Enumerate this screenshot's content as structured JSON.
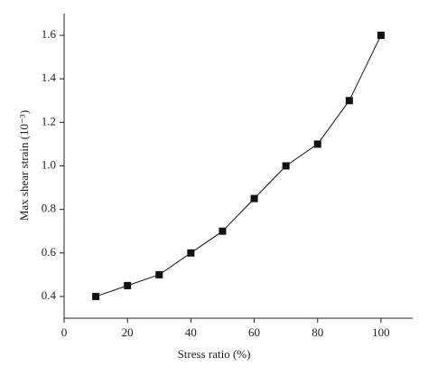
{
  "chart_data": {
    "type": "line",
    "x_label": "Stress ratio (%)",
    "y_label": "Max shear strain (10⁻³)",
    "x": [
      10,
      20,
      30,
      40,
      50,
      60,
      70,
      80,
      90,
      100
    ],
    "series": [
      {
        "color": "#111111",
        "values": [
          0.4,
          0.45,
          0.5,
          0.6,
          0.7,
          0.85,
          1.0,
          1.1,
          1.3,
          1.6
        ]
      }
    ],
    "xlim": [
      0,
      110
    ],
    "xticks": [
      0,
      20,
      40,
      60,
      80,
      100
    ],
    "ylim": [
      0.3,
      1.7
    ],
    "yticks": [
      0.4,
      0.6,
      0.8,
      {
        "value": 1,
        "label": "1.0"
      },
      1.2,
      1.4,
      1.6
    ]
  }
}
